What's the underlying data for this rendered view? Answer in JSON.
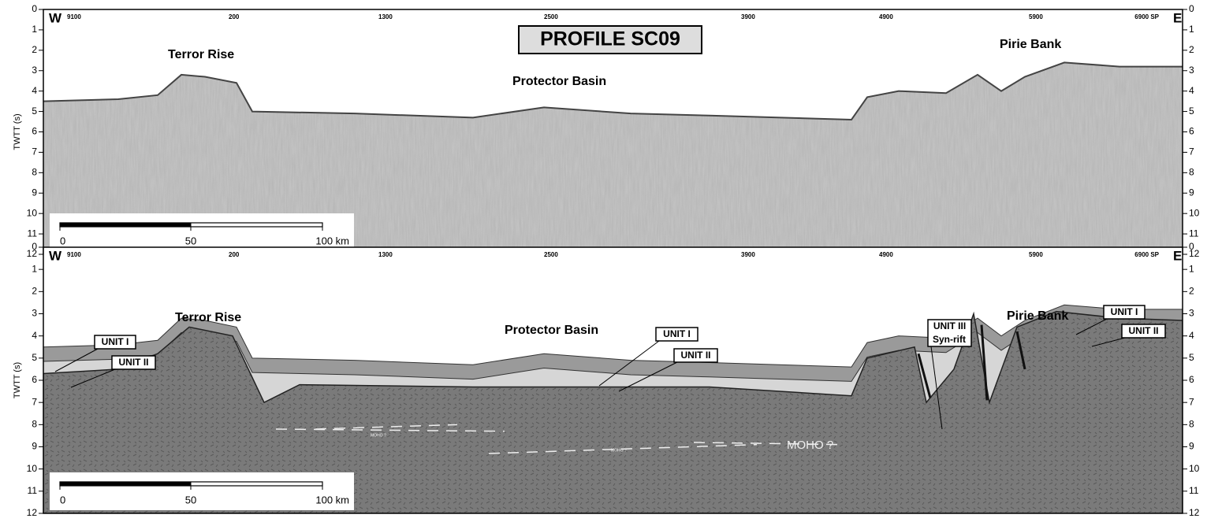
{
  "title": "PROFILE SC09",
  "y_axis_label": "TWTT (s)",
  "y_ticks": [
    0,
    1,
    2,
    3,
    4,
    5,
    6,
    7,
    8,
    9,
    10,
    11,
    12
  ],
  "shot_points": [
    "9100",
    "200",
    "1300",
    "2500",
    "3900",
    "4900",
    "5900",
    "6900 SP"
  ],
  "west": "W",
  "east": "E",
  "scale_bar": [
    "0",
    "50",
    "100 km"
  ],
  "seismic_panel": {
    "labels": [
      "Terror Rise",
      "Protector Basin",
      "Pirie Bank"
    ]
  },
  "interpretation_panel": {
    "labels": [
      "Terror Rise",
      "Protector Basin",
      "Pirie Bank"
    ],
    "units": [
      "UNIT I",
      "UNIT II",
      "UNIT I",
      "UNIT II",
      "UNIT III",
      "Syn-rift",
      "UNIT I",
      "UNIT II"
    ],
    "moho": [
      "MOHO ?",
      "MOHO ?",
      "MOHO ?"
    ]
  }
}
